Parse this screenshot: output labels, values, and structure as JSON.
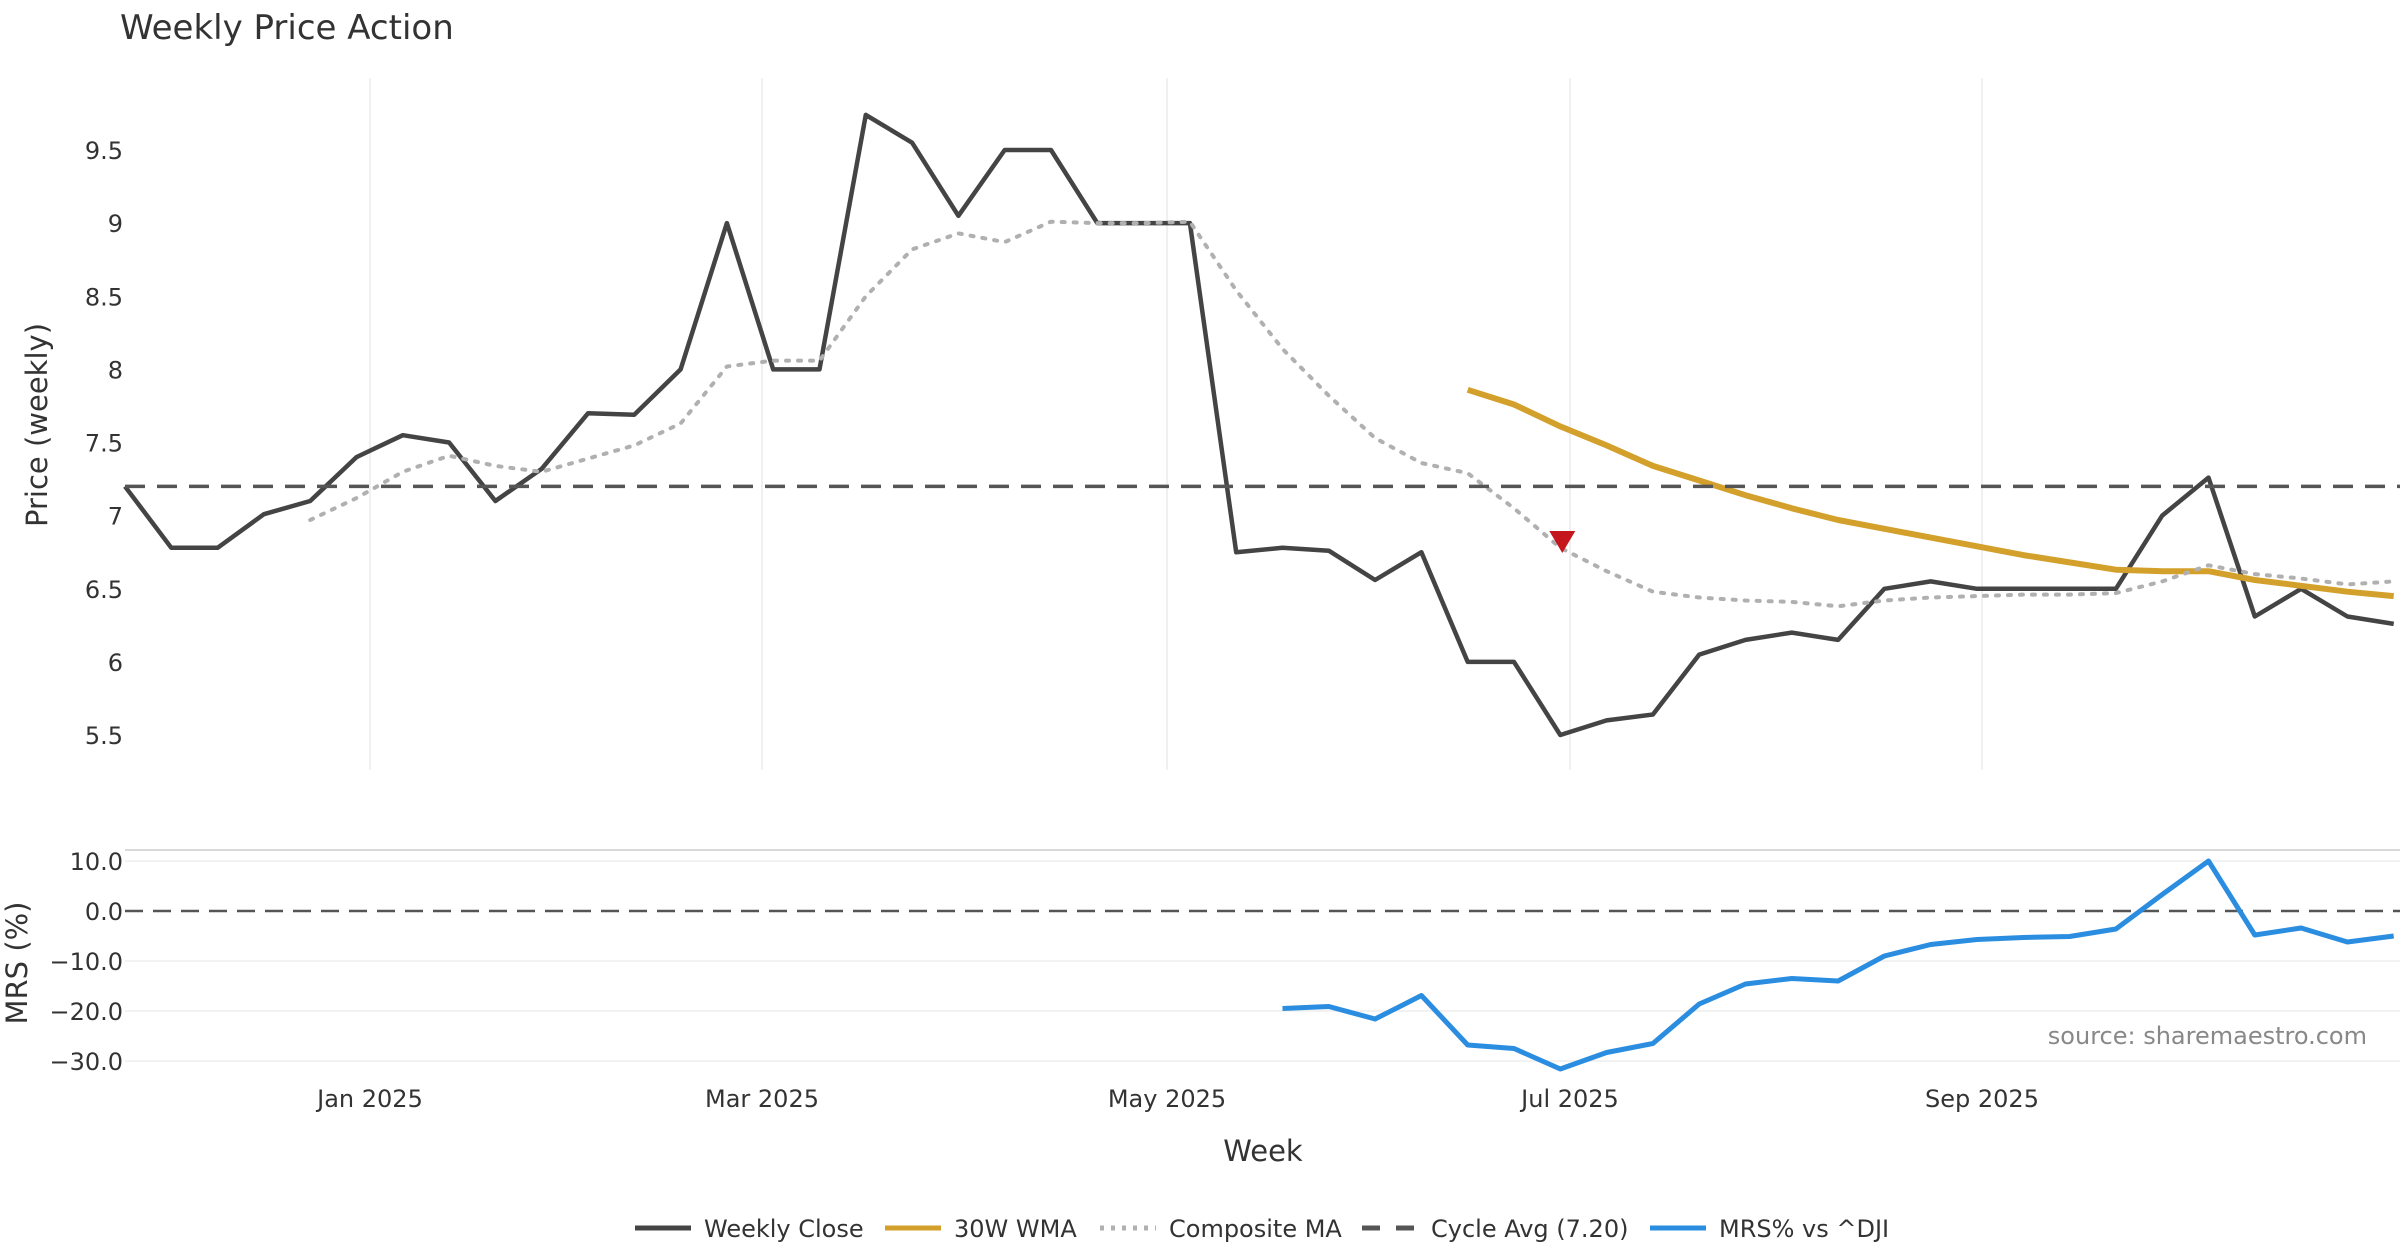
{
  "chart_data": {
    "type": "line",
    "title": "Weekly Price Action",
    "source_note": "source: sharemaestro.com",
    "xlabel": "Week",
    "x_tick_labels": [
      "Jan 2025",
      "Mar 2025",
      "May 2025",
      "Jul 2025",
      "Sep 2025"
    ],
    "price_panel": {
      "ylabel": "Price (weekly)",
      "ylim": [
        5.25,
        9.98
      ],
      "y_ticks": [
        "5.5",
        "6",
        "6.5",
        "7",
        "7.5",
        "8",
        "8.5",
        "9",
        "9.5"
      ],
      "series": [
        {
          "name": "Weekly Close",
          "color": "#444444",
          "style": "solid",
          "start_week": 0,
          "values": [
            7.2,
            6.78,
            6.78,
            7.01,
            7.1,
            7.4,
            7.55,
            7.5,
            7.1,
            7.32,
            7.7,
            7.69,
            8.0,
            9.0,
            8.0,
            8.0,
            9.74,
            9.55,
            9.05,
            9.5,
            9.5,
            9.0,
            9.0,
            9.0,
            6.75,
            6.78,
            6.76,
            6.56,
            6.75,
            6.0,
            6.0,
            5.5,
            5.6,
            5.64,
            6.05,
            6.15,
            6.2,
            6.15,
            6.5,
            6.55,
            6.5,
            6.5,
            6.5,
            6.5,
            7.0,
            7.26,
            6.31,
            6.5,
            6.31,
            6.26
          ]
        },
        {
          "name": "30W WMA",
          "color": "#d4a02c",
          "style": "solid",
          "start_week": 29,
          "values": [
            7.86,
            7.76,
            7.61,
            7.48,
            7.34,
            7.24,
            7.14,
            7.05,
            6.97,
            6.91,
            6.85,
            6.79,
            6.73,
            6.68,
            6.63,
            6.62,
            6.62,
            6.56,
            6.52,
            6.48,
            6.45
          ]
        },
        {
          "name": "Composite MA",
          "color": "#b0b0b0",
          "style": "dotted",
          "start_week": 4,
          "values": [
            6.97,
            7.12,
            7.3,
            7.41,
            7.34,
            7.3,
            7.39,
            7.48,
            7.63,
            8.02,
            8.06,
            8.06,
            8.5,
            8.82,
            8.93,
            8.87,
            9.01,
            9.0,
            9.0,
            9.01,
            8.54,
            8.14,
            7.82,
            7.53,
            7.36,
            7.29,
            7.05,
            6.78,
            6.62,
            6.48,
            6.44,
            6.42,
            6.41,
            6.38,
            6.42,
            6.44,
            6.45,
            6.46,
            6.46,
            6.47,
            6.55,
            6.66,
            6.6,
            6.57,
            6.53,
            6.55
          ]
        },
        {
          "name": "Cycle Avg (7.20)",
          "color": "#555555",
          "style": "dashed",
          "level": 7.2
        }
      ],
      "markers": [
        {
          "type": "sell-triangle",
          "week": 31,
          "value": 6.82,
          "color": "#c4161c"
        }
      ]
    },
    "mrs_panel": {
      "ylabel": "MRS (%)",
      "ylim": [
        -31.5,
        12.0
      ],
      "y_ticks": [
        "10.0",
        "0.0",
        "−10.0",
        "−20.0",
        "−30.0"
      ],
      "zero_line": 0,
      "series": [
        {
          "name": "MRS% vs ^DJI",
          "color": "#2b8de0",
          "style": "solid",
          "start_week": 25,
          "values": [
            -19.5,
            -19.1,
            -21.6,
            -16.9,
            -26.8,
            -27.5,
            -31.6,
            -28.3,
            -26.5,
            -18.6,
            -14.6,
            -13.5,
            -14.0,
            -9.0,
            -6.7,
            -5.7,
            -5.3,
            -5.1,
            -3.6,
            3.3,
            10.0,
            -4.8,
            -3.4,
            -6.2,
            -5.0
          ]
        }
      ]
    },
    "legend": [
      {
        "label": "Weekly Close",
        "color": "#444444",
        "style": "solid"
      },
      {
        "label": "30W WMA",
        "color": "#d4a02c",
        "style": "solid"
      },
      {
        "label": "Composite MA",
        "color": "#b0b0b0",
        "style": "dotted"
      },
      {
        "label": "Cycle Avg (7.20)",
        "color": "#555555",
        "style": "dashed"
      },
      {
        "label": "MRS% vs ^DJI",
        "color": "#2b8de0",
        "style": "solid"
      }
    ],
    "legend_position": "bottom-center"
  }
}
